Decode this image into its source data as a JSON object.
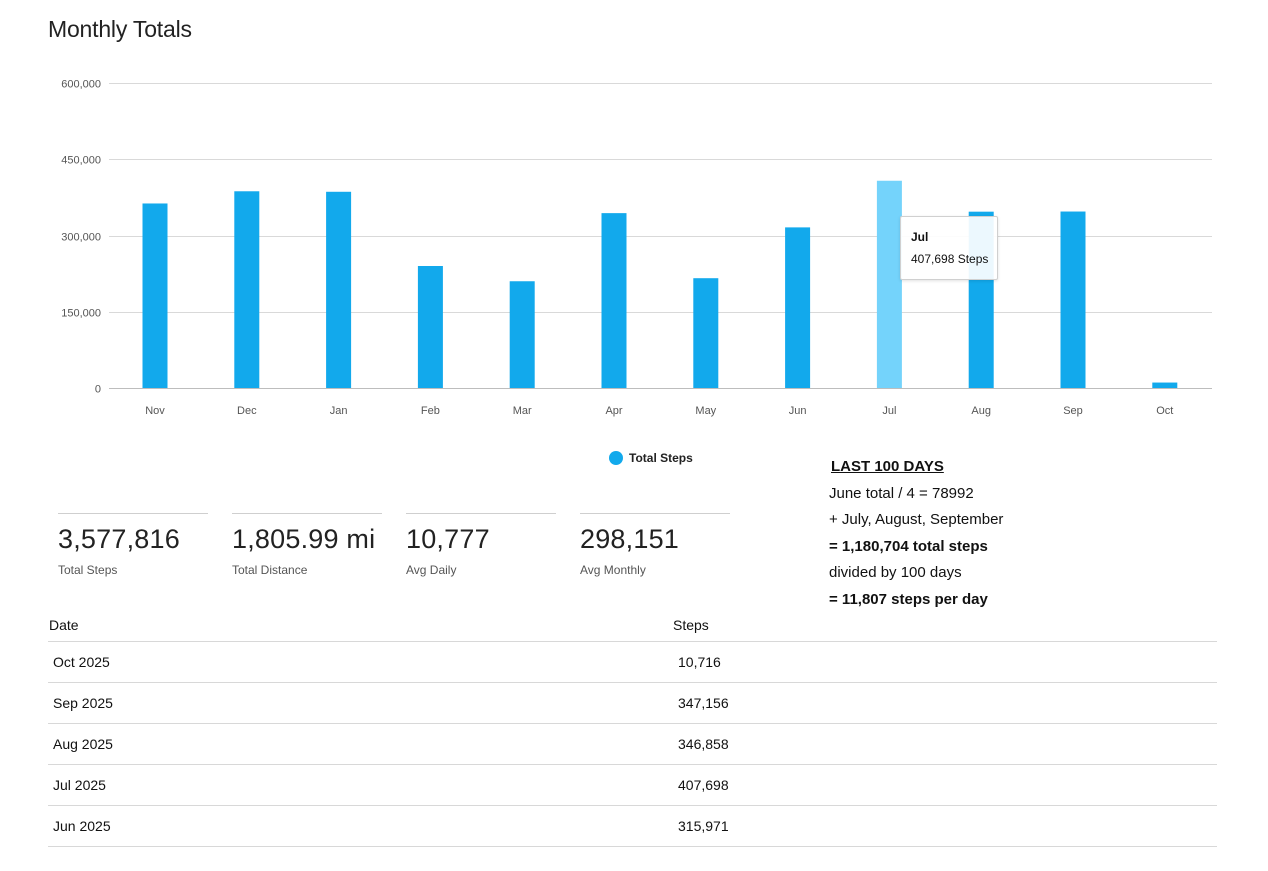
{
  "page_title": "Monthly Totals",
  "chart_data": {
    "type": "bar",
    "categories": [
      "Nov",
      "Dec",
      "Jan",
      "Feb",
      "Mar",
      "Apr",
      "May",
      "Jun",
      "Jul",
      "Aug",
      "Sep",
      "Oct"
    ],
    "series": [
      {
        "name": "Total Steps",
        "values": [
          363000,
          387000,
          386000,
          240000,
          210000,
          344000,
          216000,
          315971,
          407698,
          346858,
          347156,
          10716
        ]
      }
    ],
    "y_ticks": [
      "0",
      "150,000",
      "300,000",
      "450,000",
      "600,000"
    ],
    "ylim": [
      0,
      600000
    ],
    "grid": true,
    "legend_position": "bottom-center",
    "highlighted_category": "Jul",
    "colors": {
      "bar": "#12a9ec",
      "bar_highlight": "#74d3fb"
    }
  },
  "legend": {
    "label": "Total Steps",
    "color": "#12a9ec"
  },
  "tooltip": {
    "title": "Jul",
    "value": "407,698 Steps"
  },
  "stats": [
    {
      "value": "3,577,816",
      "label": "Total Steps"
    },
    {
      "value": "1,805.99 mi",
      "label": "Total Distance"
    },
    {
      "value": "10,777",
      "label": "Avg Daily"
    },
    {
      "value": "298,151",
      "label": "Avg Monthly"
    }
  ],
  "note": {
    "heading": "LAST 100 DAYS",
    "line1": "June total / 4 = 78992",
    "line2": "+ July, August, September",
    "line3": "= 1,180,704 total steps",
    "line4": "divided by 100 days",
    "line5": "= 11,807 steps per day"
  },
  "table": {
    "headers": {
      "date": "Date",
      "steps": "Steps"
    },
    "rows": [
      {
        "date": "Oct 2025",
        "steps": "10,716"
      },
      {
        "date": "Sep 2025",
        "steps": "347,156"
      },
      {
        "date": "Aug 2025",
        "steps": "346,858"
      },
      {
        "date": "Jul 2025",
        "steps": "407,698"
      },
      {
        "date": "Jun 2025",
        "steps": "315,971"
      }
    ]
  }
}
